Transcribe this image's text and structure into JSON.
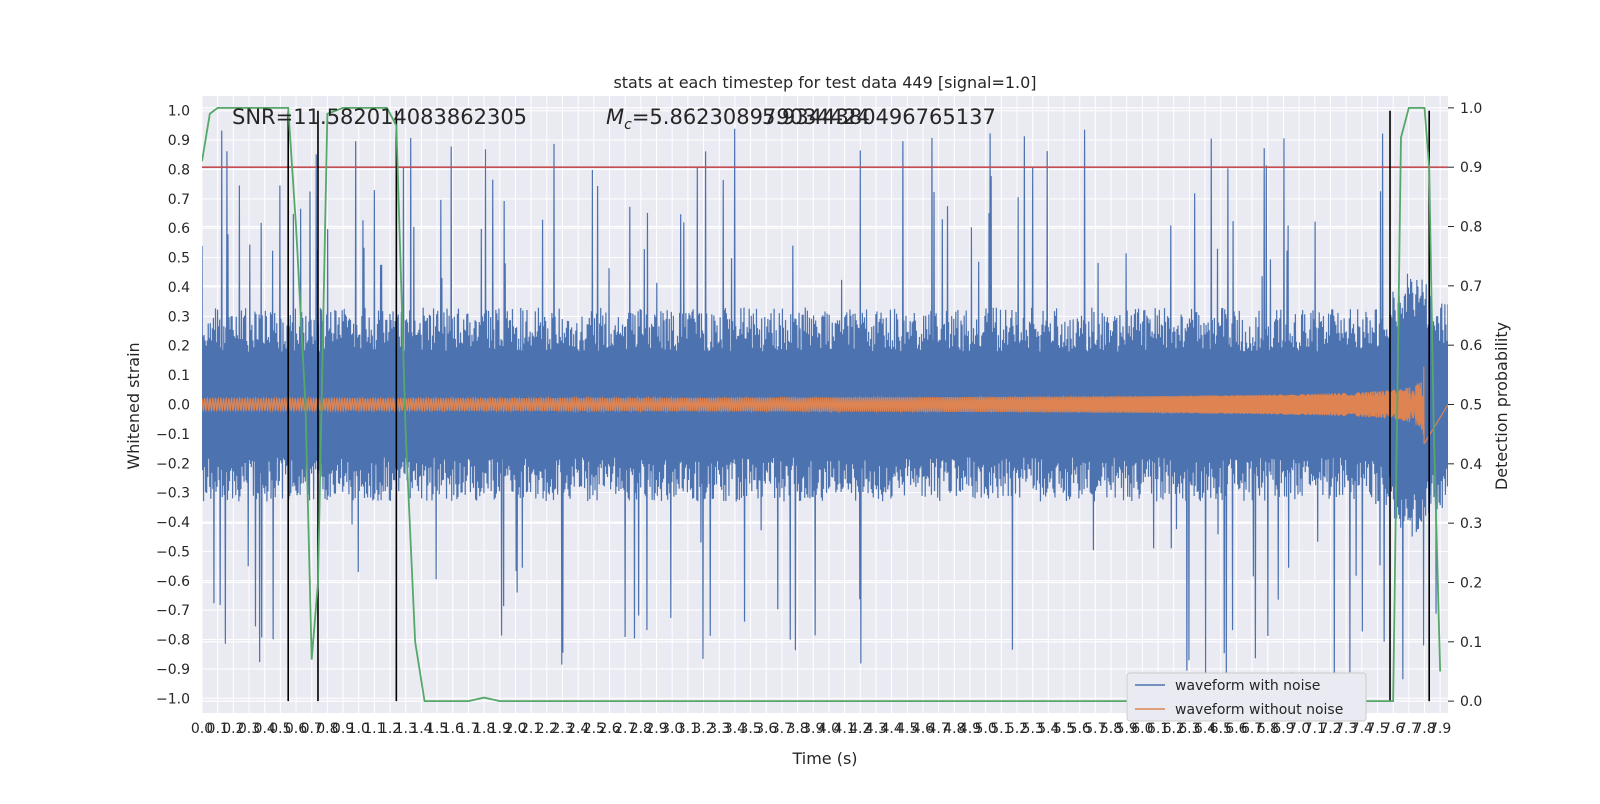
{
  "chart_data": {
    "type": "line",
    "title": "stats at each timestep for test data 449 [signal=1.0]",
    "xlabel": "Time (s)",
    "ylabel": "Whitened strain",
    "y2label": "Detection probability",
    "xlim": [
      0.0,
      7.95
    ],
    "ylim": [
      -1.05,
      1.05
    ],
    "y2lim": [
      -0.02,
      1.02
    ],
    "grid": true,
    "legend_position": "lower-right",
    "x_ticks": [
      "0.0",
      "0.1",
      "0.2",
      "0.3",
      "0.4",
      "0.5",
      "0.6",
      "0.7",
      "0.8",
      "0.9",
      "1.0",
      "1.1",
      "1.2",
      "1.3",
      "1.4",
      "1.5",
      "1.6",
      "1.7",
      "1.8",
      "1.9",
      "2.0",
      "2.1",
      "2.2",
      "2.3",
      "2.4",
      "2.5",
      "2.6",
      "2.7",
      "2.8",
      "2.9",
      "3.0",
      "3.1",
      "3.2",
      "3.3",
      "3.4",
      "3.5",
      "3.6",
      "3.7",
      "3.8",
      "3.9",
      "4.0",
      "4.1",
      "4.2",
      "4.3",
      "4.4",
      "4.5",
      "4.6",
      "4.7",
      "4.8",
      "4.9",
      "5.0",
      "5.1",
      "5.2",
      "5.3",
      "5.4",
      "5.5",
      "5.6",
      "5.7",
      "5.8",
      "5.9",
      "6.0",
      "6.1",
      "6.2",
      "6.3",
      "6.4",
      "6.5",
      "6.6",
      "6.7",
      "6.8",
      "6.9",
      "7.0",
      "7.1",
      "7.2",
      "7.3",
      "7.4",
      "7.5",
      "7.6",
      "7.7",
      "7.8",
      "7.9"
    ],
    "y_ticks": [
      "1.0",
      "0.9",
      "0.8",
      "0.7",
      "0.6",
      "0.5",
      "0.4",
      "0.3",
      "0.2",
      "0.1",
      "0.0",
      "−0.1",
      "−0.2",
      "−0.3",
      "−0.4",
      "−0.5",
      "−0.6",
      "−0.7",
      "−0.8",
      "−0.9",
      "−1.0"
    ],
    "y2_ticks": [
      "1.0",
      "0.9",
      "0.8",
      "0.7",
      "0.6",
      "0.5",
      "0.4",
      "0.3",
      "0.2",
      "0.1",
      "0.0"
    ],
    "annotations": {
      "snr": "SNR=11.582014083862305",
      "mc_symbol": "M",
      "mc_sub": "c",
      "mc_value": "=5.862308979034424",
      "overlap_text": "5.9344380496765137"
    },
    "threshold_y2": 0.9,
    "vertical_markers_x": [
      0.55,
      0.74,
      1.24,
      7.58,
      7.83
    ],
    "series": [
      {
        "name": "waveform with noise",
        "color": "#4c72b0",
        "envelope": 0.3,
        "spike_max": 0.95,
        "axis": "left"
      },
      {
        "name": "waveform without noise",
        "color": "#dd8452",
        "start_amplitude": 0.02,
        "peak_amplitude": 0.27,
        "merger_time": 7.8,
        "axis": "left"
      },
      {
        "name": "detection probability",
        "color": "#55a868",
        "axis": "right",
        "x": [
          0.0,
          0.05,
          0.1,
          0.2,
          0.3,
          0.4,
          0.5,
          0.55,
          0.6,
          0.66,
          0.7,
          0.74,
          0.8,
          0.9,
          1.0,
          1.1,
          1.18,
          1.24,
          1.3,
          1.36,
          1.42,
          1.7,
          1.8,
          1.9,
          2.5,
          4.0,
          6.8,
          6.9,
          6.95,
          7.0,
          7.5,
          7.6,
          7.65,
          7.7,
          7.8,
          7.83,
          7.86,
          7.9
        ],
        "y": [
          0.91,
          0.99,
          1.0,
          1.0,
          1.0,
          1.0,
          1.0,
          1.0,
          0.8,
          0.5,
          0.07,
          0.2,
          0.99,
          1.0,
          1.0,
          1.0,
          1.0,
          0.97,
          0.45,
          0.1,
          0.0,
          0.0,
          0.006,
          0.0,
          0.0,
          0.0,
          0.0,
          0.005,
          0.045,
          0.0,
          0.0,
          0.0,
          0.95,
          1.0,
          1.0,
          0.9,
          0.45,
          0.05
        ]
      }
    ]
  }
}
